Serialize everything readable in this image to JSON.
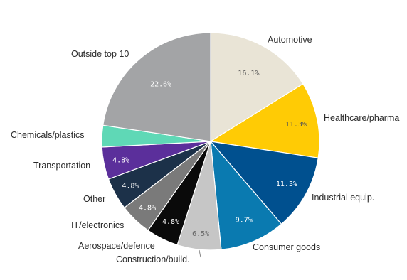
{
  "chart_data": {
    "type": "pie",
    "title": "",
    "start_angle_deg": 0,
    "direction": "clockwise",
    "slices": [
      {
        "label": "Automotive",
        "value": 16.1,
        "value_label": "16.1%",
        "color": "#e9e4d6",
        "text_color": "#555555"
      },
      {
        "label": "Healthcare/pharma",
        "value": 11.3,
        "value_label": "11.3%",
        "color": "#ffcb05",
        "text_color": "#555555"
      },
      {
        "label": "Industrial equip.",
        "value": 11.3,
        "value_label": "11.3%",
        "color": "#00508f",
        "text_color": "#ffffff"
      },
      {
        "label": "Consumer goods",
        "value": 9.7,
        "value_label": "9.7%",
        "color": "#0a7ab0",
        "text_color": "#ffffff"
      },
      {
        "label": "Construction/build.",
        "value": 6.5,
        "value_label": "6.5%",
        "color": "#c6c6c6",
        "text_color": "#666666"
      },
      {
        "label": "Aerospace/defence",
        "value": 4.8,
        "value_label": "4.8%",
        "color": "#0a0a0a",
        "text_color": "#ffffff"
      },
      {
        "label": "IT/electronics",
        "value": 4.8,
        "value_label": "4.8%",
        "color": "#7a7a7a",
        "text_color": "#ffffff"
      },
      {
        "label": "Other",
        "value": 4.8,
        "value_label": "4.8%",
        "color": "#1c3149",
        "text_color": "#ffffff"
      },
      {
        "label": "Transportation",
        "value": 4.8,
        "value_label": "4.8%",
        "color": "#5b2f9b",
        "text_color": "#ffffff"
      },
      {
        "label": "Chemicals/plastics",
        "value": 3.2,
        "value_label": "",
        "color": "#5fd8b6",
        "text_color": "#ffffff"
      },
      {
        "label": "Outside top 10",
        "value": 22.6,
        "value_label": "22.6%",
        "color": "#a3a4a6",
        "text_color": "#ffffff"
      }
    ],
    "legend": "none"
  }
}
